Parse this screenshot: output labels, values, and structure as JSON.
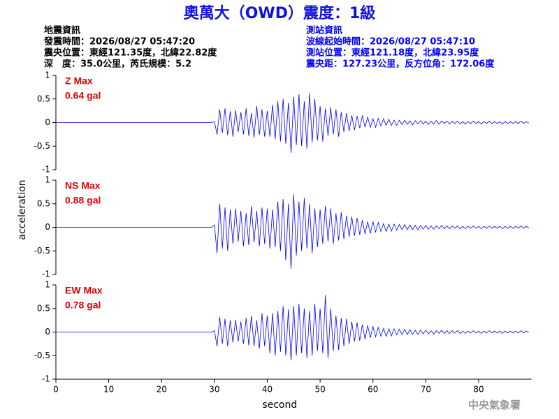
{
  "title": "奧萬大（OWD）震度：1級",
  "info_left": [
    "地震資訊",
    "發震時間：2026/08/27 05:47:20",
    "震央位置：東經121.35度，北緯22.82度",
    "深　度：35.0公里，芮氏規模：5.2"
  ],
  "info_right": [
    "測站資訊",
    "波線起始時間：2026/08/27 05:47:10",
    "測站位置：東經121.18度，北緯23.95度",
    "震央距：127.23公里，反方位角：172.06度"
  ],
  "footer": "中央氣象署",
  "chart_data": [
    {
      "type": "line",
      "annotations": [
        "Z Max",
        "0.64 gal"
      ],
      "color": "#0000ff",
      "xlim": [
        0,
        90
      ],
      "ylim": [
        -1,
        1
      ],
      "yticks": [
        -1,
        -0.5,
        0,
        0.5,
        1
      ],
      "x": [
        0,
        29.5,
        30,
        30.5,
        31,
        31.5,
        32,
        32.5,
        33,
        33.5,
        34,
        34.5,
        35,
        35.5,
        36,
        36.5,
        37,
        37.5,
        38,
        38.5,
        39,
        39.5,
        40,
        40.5,
        41,
        41.5,
        42,
        42.5,
        43,
        43.5,
        44,
        44.5,
        45,
        45.5,
        46,
        46.5,
        47,
        47.5,
        48,
        48.5,
        49,
        49.5,
        50,
        50.5,
        51,
        51.5,
        52,
        52.5,
        53,
        53.5,
        54,
        54.5,
        55,
        55.5,
        56,
        56.5,
        57,
        57.5,
        58,
        58.5,
        59,
        59.5,
        60,
        60.5,
        61,
        61.5,
        62,
        62.5,
        63,
        63.5,
        64,
        64.5,
        65,
        65.5,
        66,
        66.5,
        67,
        67.5,
        68,
        68.5,
        69,
        69.5,
        70,
        70.5,
        71,
        71.5,
        72,
        72.5,
        73,
        73.5,
        74,
        74.5,
        75,
        75.5,
        76,
        76.5,
        77,
        77.5,
        78,
        78.5,
        79,
        79.5,
        80,
        80.5,
        81,
        81.5,
        82,
        82.5,
        83,
        83.5,
        84,
        84.5,
        85,
        85.5,
        86,
        86.5,
        87,
        87.5,
        88,
        88.5,
        89,
        89.5
      ],
      "values": [
        0,
        0,
        0.02,
        -0.25,
        0.28,
        -0.22,
        0.3,
        -0.27,
        0.24,
        -0.3,
        0.26,
        -0.2,
        0.22,
        -0.25,
        0.3,
        -0.28,
        0.2,
        -0.32,
        0.35,
        -0.26,
        0.28,
        -0.3,
        0.25,
        -0.3,
        0.38,
        -0.35,
        0.45,
        -0.4,
        0.5,
        -0.45,
        0.42,
        -0.64,
        0.55,
        -0.48,
        0.6,
        -0.5,
        0.45,
        -0.55,
        0.62,
        -0.42,
        0.5,
        -0.38,
        0.35,
        -0.4,
        0.3,
        -0.28,
        0.32,
        -0.25,
        0.28,
        -0.3,
        0.22,
        -0.2,
        0.2,
        -0.18,
        0.15,
        -0.16,
        0.14,
        -0.12,
        0.15,
        -0.1,
        0.12,
        -0.1,
        0.08,
        -0.1,
        0.09,
        -0.07,
        0.08,
        -0.06,
        0.07,
        -0.06,
        0.05,
        -0.06,
        0.05,
        -0.04,
        0.05,
        -0.04,
        0.04,
        -0.05,
        0.04,
        -0.03,
        0.04,
        -0.03,
        0.03,
        -0.04,
        0.03,
        -0.03,
        0.04,
        -0.03,
        0.03,
        -0.02,
        0.03,
        -0.03,
        0.03,
        -0.02,
        0.03,
        -0.03,
        0.02,
        -0.03,
        0.02,
        -0.02,
        0.03,
        -0.02,
        0.02,
        -0.03,
        0.02,
        -0.02,
        0.03,
        -0.02,
        0.02,
        -0.02,
        0.02,
        -0.03,
        0.02,
        -0.02,
        0.02,
        -0.02,
        0.02,
        -0.02,
        0.03,
        -0.02,
        0.02,
        -0.01
      ]
    },
    {
      "type": "line",
      "annotations": [
        "NS Max",
        "0.88 gal"
      ],
      "color": "#0000ff",
      "ylabel": "acceleration",
      "xlim": [
        0,
        90
      ],
      "ylim": [
        -1,
        1
      ],
      "yticks": [
        -1,
        -0.5,
        0,
        0.5,
        1
      ],
      "x": [
        0,
        29.5,
        30,
        30.5,
        31,
        31.5,
        32,
        32.5,
        33,
        33.5,
        34,
        34.5,
        35,
        35.5,
        36,
        36.5,
        37,
        37.5,
        38,
        38.5,
        39,
        39.5,
        40,
        40.5,
        41,
        41.5,
        42,
        42.5,
        43,
        43.5,
        44,
        44.5,
        45,
        45.5,
        46,
        46.5,
        47,
        47.5,
        48,
        48.5,
        49,
        49.5,
        50,
        50.5,
        51,
        51.5,
        52,
        52.5,
        53,
        53.5,
        54,
        54.5,
        55,
        55.5,
        56,
        56.5,
        57,
        57.5,
        58,
        58.5,
        59,
        59.5,
        60,
        60.5,
        61,
        61.5,
        62,
        62.5,
        63,
        63.5,
        64,
        64.5,
        65,
        65.5,
        66,
        66.5,
        67,
        67.5,
        68,
        68.5,
        69,
        69.5,
        70,
        70.5,
        71,
        71.5,
        72,
        72.5,
        73,
        73.5,
        74,
        74.5,
        75,
        75.5,
        76,
        76.5,
        77,
        77.5,
        78,
        78.5,
        79,
        79.5,
        80,
        80.5,
        81,
        81.5,
        82,
        82.5,
        83,
        83.5,
        84,
        84.5,
        85,
        85.5,
        86,
        86.5,
        87,
        87.5,
        88,
        88.5,
        89,
        89.5
      ],
      "values": [
        0,
        0,
        0.05,
        -0.55,
        0.5,
        -0.45,
        0.42,
        -0.5,
        0.38,
        -0.35,
        0.4,
        -0.3,
        0.35,
        -0.4,
        0.3,
        -0.38,
        0.45,
        -0.32,
        0.35,
        -0.4,
        0.42,
        -0.35,
        0.4,
        -0.45,
        0.38,
        -0.42,
        0.55,
        -0.5,
        0.6,
        -0.7,
        0.5,
        -0.88,
        0.7,
        -0.6,
        0.55,
        -0.5,
        0.62,
        -0.45,
        0.5,
        -0.55,
        0.4,
        -0.42,
        0.38,
        -0.35,
        0.45,
        -0.3,
        0.4,
        -0.35,
        0.3,
        -0.28,
        0.32,
        -0.25,
        0.25,
        -0.2,
        0.22,
        -0.18,
        0.2,
        -0.16,
        0.15,
        -0.14,
        0.12,
        -0.13,
        0.12,
        -0.1,
        0.1,
        -0.09,
        0.08,
        -0.09,
        0.07,
        -0.08,
        0.07,
        -0.06,
        0.06,
        -0.05,
        0.06,
        -0.05,
        0.05,
        -0.05,
        0.04,
        -0.05,
        0.04,
        -0.04,
        0.04,
        -0.04,
        0.03,
        -0.04,
        0.03,
        -0.03,
        0.04,
        -0.03,
        0.03,
        -0.03,
        0.03,
        -0.02,
        0.03,
        -0.03,
        0.02,
        -0.03,
        0.02,
        -0.02,
        0.03,
        -0.02,
        0.02,
        -0.03,
        0.02,
        -0.02,
        0.03,
        -0.02,
        0.02,
        -0.02,
        0.02,
        -0.03,
        0.02,
        -0.02,
        0.02,
        -0.02,
        0.02,
        -0.02,
        0.03,
        -0.02,
        0.02,
        -0.01
      ]
    },
    {
      "type": "line",
      "annotations": [
        "EW Max",
        "0.78 gal"
      ],
      "color": "#0000ff",
      "xlabel": "second",
      "xlim": [
        0,
        90
      ],
      "ylim": [
        -1,
        1
      ],
      "yticks": [
        -1,
        -0.5,
        0,
        0.5,
        1
      ],
      "xticks": [
        0,
        10,
        20,
        30,
        40,
        50,
        60,
        70,
        80
      ],
      "x": [
        0,
        29.5,
        30,
        30.5,
        31,
        31.5,
        32,
        32.5,
        33,
        33.5,
        34,
        34.5,
        35,
        35.5,
        36,
        36.5,
        37,
        37.5,
        38,
        38.5,
        39,
        39.5,
        40,
        40.5,
        41,
        41.5,
        42,
        42.5,
        43,
        43.5,
        44,
        44.5,
        45,
        45.5,
        46,
        46.5,
        47,
        47.5,
        48,
        48.5,
        49,
        49.5,
        50,
        50.5,
        51,
        51.5,
        52,
        52.5,
        53,
        53.5,
        54,
        54.5,
        55,
        55.5,
        56,
        56.5,
        57,
        57.5,
        58,
        58.5,
        59,
        59.5,
        60,
        60.5,
        61,
        61.5,
        62,
        62.5,
        63,
        63.5,
        64,
        64.5,
        65,
        65.5,
        66,
        66.5,
        67,
        67.5,
        68,
        68.5,
        69,
        69.5,
        70,
        70.5,
        71,
        71.5,
        72,
        72.5,
        73,
        73.5,
        74,
        74.5,
        75,
        75.5,
        76,
        76.5,
        77,
        77.5,
        78,
        78.5,
        79,
        79.5,
        80,
        80.5,
        81,
        81.5,
        82,
        82.5,
        83,
        83.5,
        84,
        84.5,
        85,
        85.5,
        86,
        86.5,
        87,
        87.5,
        88,
        88.5,
        89,
        89.5
      ],
      "values": [
        0,
        0,
        0.03,
        -0.3,
        0.32,
        -0.25,
        0.28,
        -0.3,
        0.25,
        -0.22,
        0.26,
        -0.2,
        0.22,
        -0.25,
        0.3,
        -0.28,
        0.35,
        -0.3,
        0.25,
        -0.35,
        0.4,
        -0.3,
        0.35,
        -0.45,
        0.4,
        -0.5,
        0.45,
        -0.42,
        0.55,
        -0.5,
        0.48,
        -0.6,
        0.55,
        -0.5,
        0.6,
        -0.45,
        0.5,
        -0.55,
        0.45,
        -0.5,
        0.6,
        -0.4,
        0.5,
        -0.45,
        0.78,
        -0.55,
        0.5,
        -0.4,
        0.35,
        -0.38,
        0.3,
        -0.3,
        0.28,
        -0.25,
        0.22,
        -0.2,
        0.2,
        -0.18,
        0.16,
        -0.15,
        0.14,
        -0.12,
        0.12,
        -0.1,
        0.1,
        -0.09,
        0.08,
        -0.09,
        0.07,
        -0.08,
        0.07,
        -0.06,
        0.06,
        -0.05,
        0.06,
        -0.05,
        0.05,
        -0.05,
        0.04,
        -0.05,
        0.04,
        -0.04,
        0.04,
        -0.04,
        0.03,
        -0.04,
        0.03,
        -0.03,
        0.04,
        -0.03,
        0.03,
        -0.03,
        0.03,
        -0.02,
        0.03,
        -0.03,
        0.02,
        -0.03,
        0.02,
        -0.02,
        0.03,
        -0.02,
        0.02,
        -0.03,
        0.02,
        -0.02,
        0.03,
        -0.02,
        0.02,
        -0.02,
        0.02,
        -0.03,
        0.02,
        -0.02,
        0.02,
        -0.02,
        0.02,
        -0.02,
        0.03,
        -0.02,
        0.02,
        -0.01
      ]
    }
  ]
}
